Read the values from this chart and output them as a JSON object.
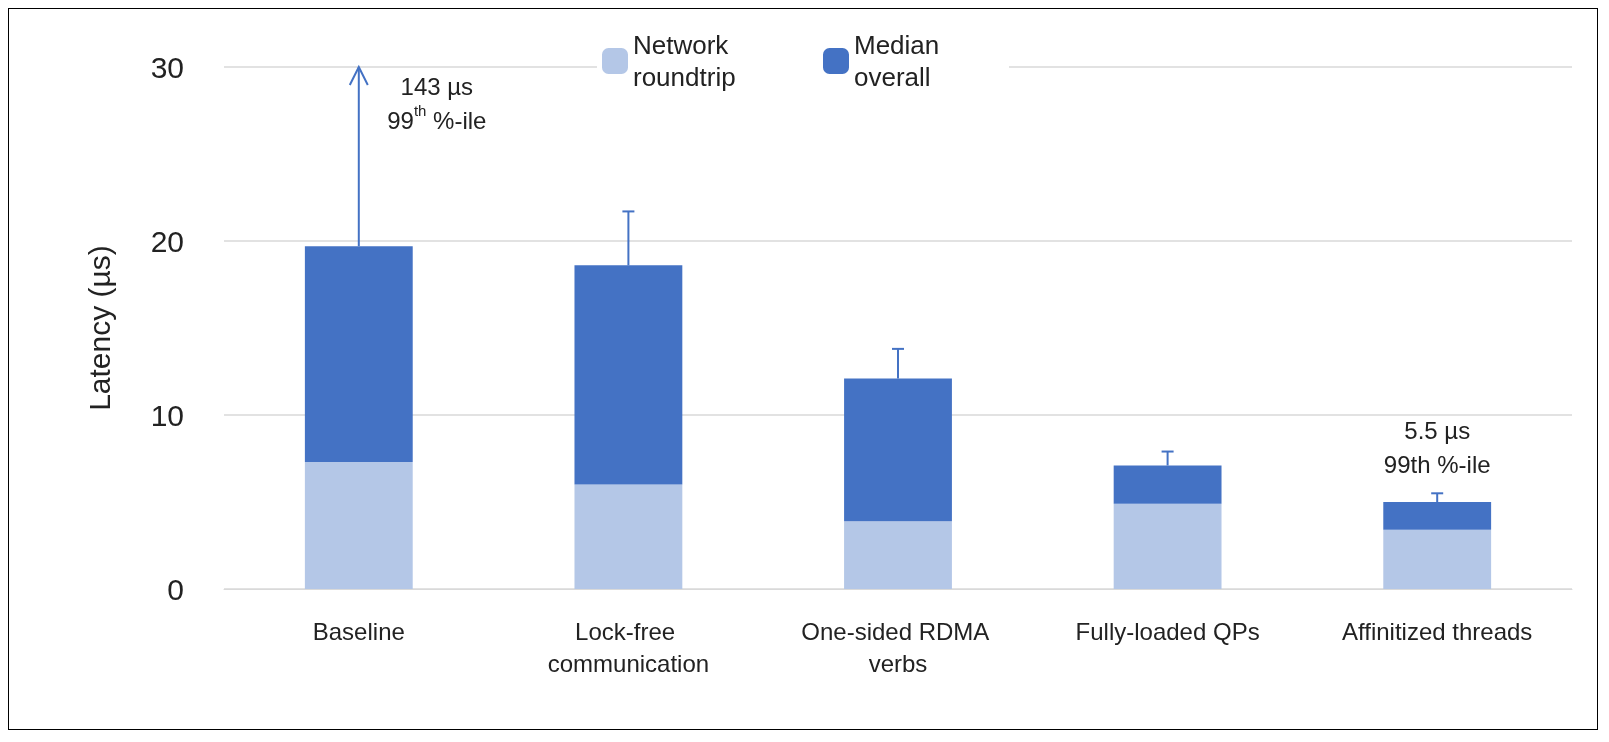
{
  "chart_data": {
    "type": "bar",
    "stacked": true,
    "ylabel": "Latency (µs)",
    "categories": [
      "Baseline",
      "Lock-free communication",
      "One-sided RDMA verbs",
      "Fully-loaded QPs",
      "Affinitized threads"
    ],
    "series": [
      {
        "name": "Network roundtrip",
        "color": "#b4c7e7",
        "values": [
          7.3,
          6.0,
          3.9,
          4.9,
          3.4
        ]
      },
      {
        "name": "Median overall",
        "color": "#4472c4",
        "values": [
          12.4,
          12.6,
          8.2,
          2.2,
          1.6
        ],
        "errors": [
          [
            19.7,
            30
          ],
          [
            18.6,
            21.7
          ],
          [
            12.1,
            13.8
          ],
          [
            7.1,
            7.9
          ],
          [
            5.0,
            5.5
          ]
        ]
      }
    ],
    "ylim": [
      0,
      30
    ],
    "yticks": [
      0,
      10,
      20,
      30
    ],
    "grid": "y",
    "legend": "top",
    "annotations": [
      {
        "text": "143 µs\n99$^{th}$ %-ile",
        "x": "Baseline",
        "y": 30
      },
      {
        "text": "5.5 µs\n99th %-ile",
        "x": "Affinitized threads",
        "y": 5.5
      }
    ]
  }
}
